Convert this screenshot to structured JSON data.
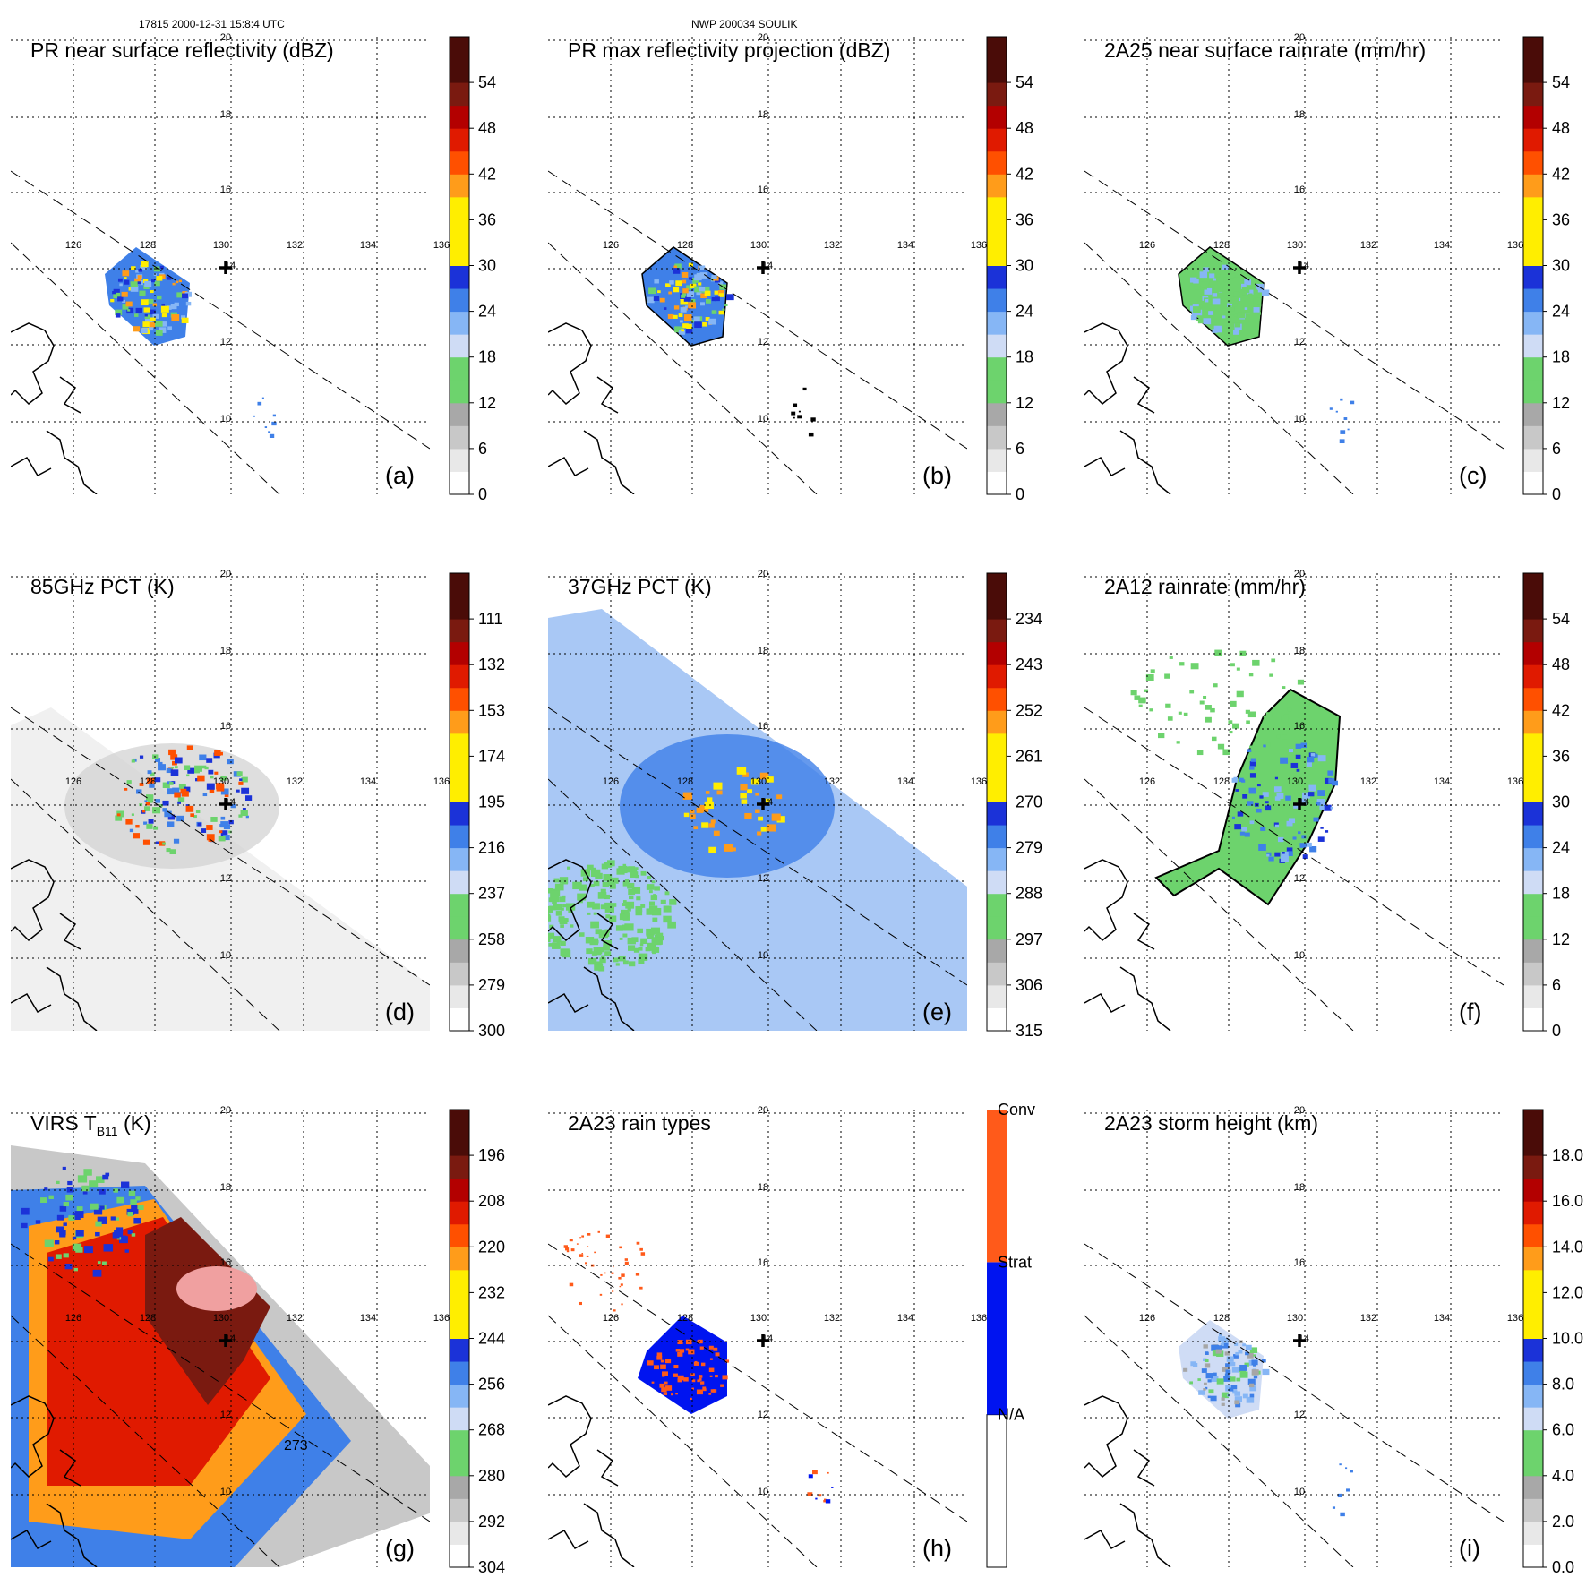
{
  "header": {
    "left": "17815 2000-12-31 15:8:4 UTC",
    "center": "NWP 200034 SOULIK"
  },
  "common": {
    "lon_labels": [
      "126",
      "128",
      "130",
      "132",
      "134",
      "136"
    ],
    "lat_labels": [
      "20",
      "18",
      "16",
      "14",
      "12",
      "10"
    ],
    "storm_center_marker": "+"
  },
  "colors": {
    "gray_ramp": [
      "#ffffff",
      "#d9d9d9",
      "#a6a6a6"
    ],
    "green": "#6dd36d",
    "blue_ramp": [
      "#cfdcf5",
      "#86b6f5",
      "#3f80e8",
      "#1b32d8"
    ],
    "warm_ramp": [
      "#ffee00",
      "#ff9c1a",
      "#ff5000",
      "#e01a00",
      "#b30000",
      "#7a1a10",
      "#4a0c08"
    ],
    "conv": "#ff5a1a",
    "strat": "#0014f0"
  },
  "chart_data": [
    {
      "id": "a",
      "type": "heatmap",
      "title": "PR near surface reflectivity (dBZ)",
      "panel_label": "(a)",
      "colorbar": {
        "ticks": [
          "0",
          "6",
          "12",
          "18",
          "24",
          "30",
          "36",
          "42",
          "48",
          "54"
        ],
        "vmin": 0,
        "vmax": 60
      }
    },
    {
      "id": "b",
      "type": "heatmap",
      "title": "PR max reflectivity projection (dBZ)",
      "panel_label": "(b)",
      "colorbar": {
        "ticks": [
          "0",
          "6",
          "12",
          "18",
          "24",
          "30",
          "36",
          "42",
          "48",
          "54"
        ],
        "vmin": 0,
        "vmax": 60
      }
    },
    {
      "id": "c",
      "type": "heatmap",
      "title": "2A25 near surface rainrate (mm/hr)",
      "panel_label": "(c)",
      "colorbar": {
        "ticks": [
          "0",
          "6",
          "12",
          "18",
          "24",
          "30",
          "36",
          "42",
          "48",
          "54"
        ],
        "vmin": 0,
        "vmax": 60
      }
    },
    {
      "id": "d",
      "type": "heatmap",
      "title": "85GHz PCT (K)",
      "panel_label": "(d)",
      "colorbar": {
        "ticks": [
          "300",
          "279",
          "258",
          "237",
          "216",
          "195",
          "174",
          "153",
          "132",
          "111"
        ],
        "vmin": 300,
        "vmax": 90
      }
    },
    {
      "id": "e",
      "type": "heatmap",
      "title": "37GHz PCT (K)",
      "panel_label": "(e)",
      "colorbar": {
        "ticks": [
          "315",
          "306",
          "297",
          "288",
          "279",
          "270",
          "261",
          "252",
          "243",
          "234"
        ],
        "vmin": 315,
        "vmax": 225
      }
    },
    {
      "id": "f",
      "type": "heatmap",
      "title": "2A12 rainrate (mm/hr)",
      "panel_label": "(f)",
      "colorbar": {
        "ticks": [
          "0",
          "6",
          "12",
          "18",
          "24",
          "30",
          "36",
          "42",
          "48",
          "54"
        ],
        "vmin": 0,
        "vmax": 60
      }
    },
    {
      "id": "g",
      "type": "heatmap",
      "title": "VIRS T",
      "title_sub": "B11",
      "title_suffix": " (K)",
      "panel_label": "(g)",
      "contour_label": "273",
      "colorbar": {
        "ticks": [
          "304",
          "292",
          "280",
          "268",
          "256",
          "244",
          "232",
          "220",
          "208",
          "196"
        ],
        "vmin": 304,
        "vmax": 184
      }
    },
    {
      "id": "h",
      "type": "heatmap",
      "title": "2A23 rain types",
      "panel_label": "(h)",
      "colorbar": {
        "categories": [
          "N/A",
          "Strat",
          "Conv"
        ]
      }
    },
    {
      "id": "i",
      "type": "heatmap",
      "title": "2A23 storm height (km)",
      "panel_label": "(i)",
      "colorbar": {
        "ticks": [
          "0.0",
          "2.0",
          "4.0",
          "6.0",
          "8.0",
          "10.0",
          "12.0",
          "14.0",
          "16.0",
          "18.0"
        ],
        "vmin": 0,
        "vmax": 20
      }
    }
  ]
}
